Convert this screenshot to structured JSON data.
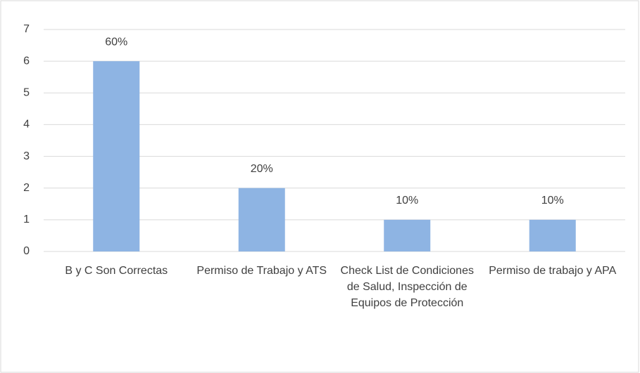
{
  "chart_data": {
    "type": "bar",
    "categories": [
      "B y C Son Correctas",
      "Permiso de Trabajo y ATS",
      "Check List de Condiciones de Salud, Inspección de Equipos de Protección",
      "Permiso de trabajo y APA"
    ],
    "values": [
      6,
      2,
      1,
      1
    ],
    "value_labels": [
      "60%",
      "20%",
      "10%",
      "10%"
    ],
    "color": "#8eb4e3",
    "ylim": [
      0,
      7
    ],
    "yticks": [
      0,
      1,
      2,
      3,
      4,
      5,
      6,
      7
    ],
    "grid": true
  }
}
